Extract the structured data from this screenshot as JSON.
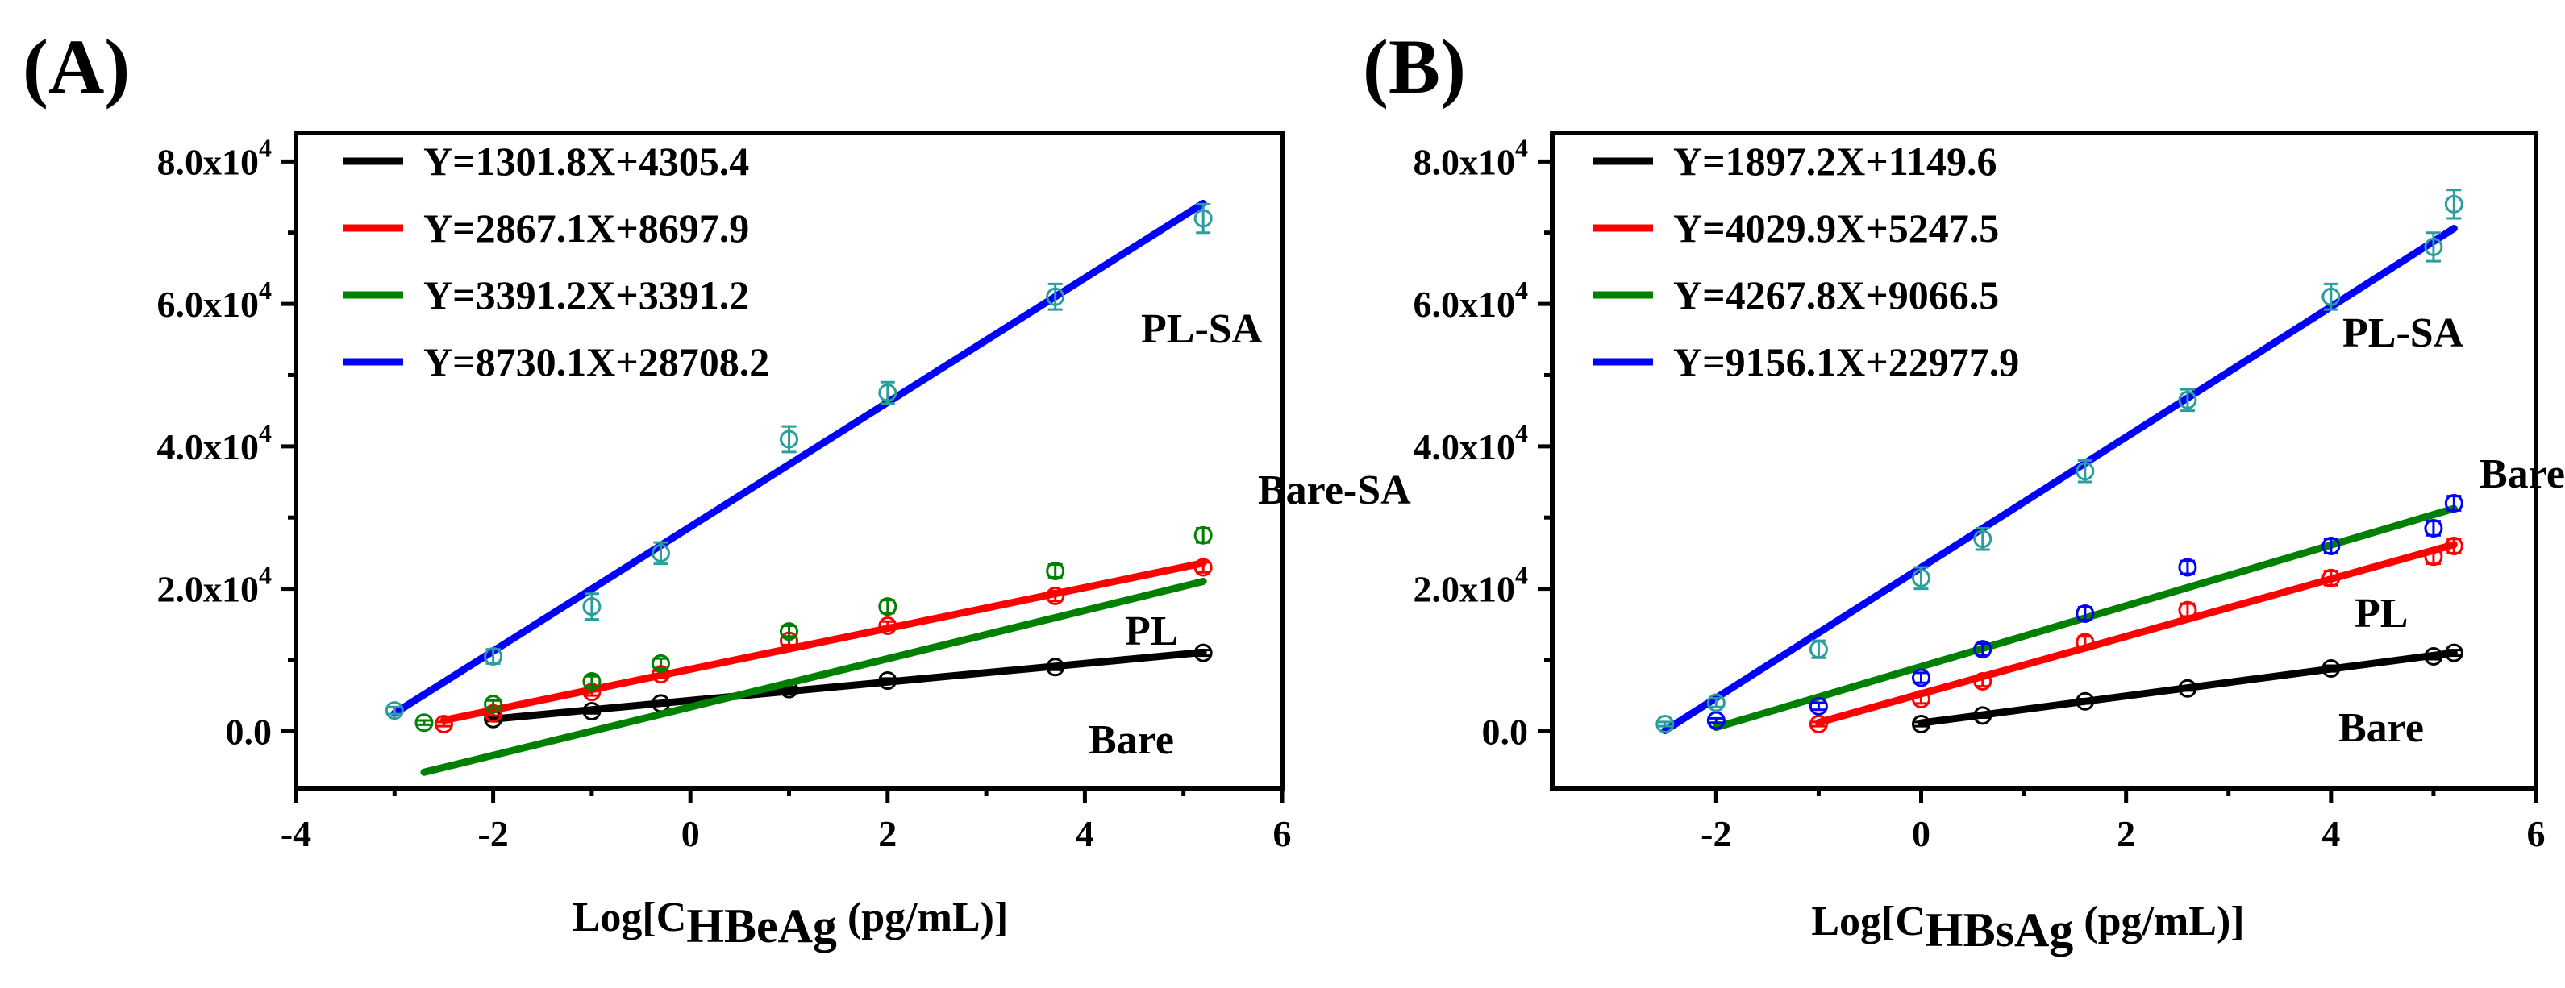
{
  "chart_data": [
    {
      "type": "scatter",
      "panel_label": "(A)",
      "xlabel": {
        "prefix": "Log[C",
        "subscript": "HBeAg",
        "suffix": " (pg/mL)]"
      },
      "ylabel": "",
      "xlim": [
        -4,
        6
      ],
      "ylim": [
        -8000,
        84000
      ],
      "xticks": [
        -4,
        -2,
        0,
        2,
        4,
        6
      ],
      "xtick_labels": [
        "-4",
        "-2",
        "0",
        "2",
        "4",
        "6"
      ],
      "yticks": [
        0,
        20000,
        40000,
        60000,
        80000
      ],
      "ytick_labels": [
        {
          "mantissa": "0.0",
          "exp": ""
        },
        {
          "mantissa": "2.0x10",
          "exp": "4"
        },
        {
          "mantissa": "4.0x10",
          "exp": "4"
        },
        {
          "mantissa": "6.0x10",
          "exp": "4"
        },
        {
          "mantissa": "8.0x10",
          "exp": "4"
        }
      ],
      "grid": false,
      "legend_position": "top-left",
      "series": [
        {
          "name": "Bare",
          "label": "Bare",
          "equation": "Y=1301.8X+4305.4",
          "line_color": "#000000",
          "marker_color": "#000000",
          "fit": {
            "slope": 1301.8,
            "intercept": 4305.4,
            "x_range": [
              -2,
              5.2
            ]
          },
          "points": [
            {
              "x": -2,
              "y": 1700,
              "err": 300
            },
            {
              "x": -1,
              "y": 2800,
              "err": 300
            },
            {
              "x": -0.3,
              "y": 3900,
              "err": 300
            },
            {
              "x": 1,
              "y": 5900,
              "err": 300
            },
            {
              "x": 2,
              "y": 7100,
              "err": 300
            },
            {
              "x": 3.7,
              "y": 9000,
              "err": 400
            },
            {
              "x": 5.2,
              "y": 11000,
              "err": 400
            }
          ]
        },
        {
          "name": "PL",
          "label": "PL",
          "equation": "Y=2867.1X+8697.9",
          "line_color": "#ff0000",
          "marker_color": "#ff0000",
          "fit": {
            "slope": 2867.1,
            "intercept": 8697.9,
            "x_range": [
              -2.5,
              5.2
            ]
          },
          "points": [
            {
              "x": -2.5,
              "y": 1000,
              "err": 300
            },
            {
              "x": -2,
              "y": 2500,
              "err": 300
            },
            {
              "x": -1,
              "y": 5500,
              "err": 500
            },
            {
              "x": -0.3,
              "y": 8000,
              "err": 500
            },
            {
              "x": 1,
              "y": 12700,
              "err": 600
            },
            {
              "x": 2,
              "y": 14800,
              "err": 600
            },
            {
              "x": 3.7,
              "y": 19000,
              "err": 700
            },
            {
              "x": 5.2,
              "y": 23000,
              "err": 700
            }
          ]
        },
        {
          "name": "Bare-SA",
          "label": "Bare-SA",
          "equation": "Y=3391.2X+3391.2",
          "line_color": "#008000",
          "marker_color": "#008000",
          "fit": {
            "slope": 3391.2,
            "intercept": 3391.2,
            "x_range": [
              -2.7,
              5.2
            ]
          },
          "points": [
            {
              "x": -2.7,
              "y": 1200,
              "err": 300
            },
            {
              "x": -2,
              "y": 3800,
              "err": 500
            },
            {
              "x": -1,
              "y": 7000,
              "err": 700
            },
            {
              "x": -0.3,
              "y": 9500,
              "err": 700
            },
            {
              "x": 1,
              "y": 14000,
              "err": 800
            },
            {
              "x": 2,
              "y": 17500,
              "err": 900
            },
            {
              "x": 3.7,
              "y": 22500,
              "err": 900
            },
            {
              "x": 5.2,
              "y": 27500,
              "err": 1000
            }
          ]
        },
        {
          "name": "PL-SA",
          "label": "PL-SA",
          "equation": "Y=8730.1X+28708.2",
          "line_color": "#0000ff",
          "marker_color": "#2a9d9d",
          "fit": {
            "slope": 8730.1,
            "intercept": 28708.2,
            "x_range": [
              -3,
              5.2
            ]
          },
          "points": [
            {
              "x": -3,
              "y": 2900,
              "err": 500
            },
            {
              "x": -2,
              "y": 10500,
              "err": 1000
            },
            {
              "x": -1,
              "y": 17500,
              "err": 1800
            },
            {
              "x": -0.3,
              "y": 25000,
              "err": 1500
            },
            {
              "x": 1,
              "y": 41000,
              "err": 1800
            },
            {
              "x": 2,
              "y": 47500,
              "err": 1500
            },
            {
              "x": 3.7,
              "y": 61000,
              "err": 1800
            },
            {
              "x": 5.2,
              "y": 72000,
              "err": 2000
            }
          ]
        }
      ]
    },
    {
      "type": "scatter",
      "panel_label": "(B)",
      "xlabel": {
        "prefix": "Log[C",
        "subscript": "HBsAg",
        "suffix": " (pg/mL)]"
      },
      "ylabel": "",
      "xlim": [
        -3.6,
        6
      ],
      "ylim": [
        -8000,
        84000
      ],
      "xticks": [
        -2,
        0,
        2,
        4,
        6
      ],
      "xtick_labels": [
        "-2",
        "0",
        "2",
        "4",
        "6"
      ],
      "yticks": [
        0,
        20000,
        40000,
        60000,
        80000
      ],
      "ytick_labels": [
        {
          "mantissa": "0.0",
          "exp": ""
        },
        {
          "mantissa": "2.0x10",
          "exp": "4"
        },
        {
          "mantissa": "4.0x10",
          "exp": "4"
        },
        {
          "mantissa": "6.0x10",
          "exp": "4"
        },
        {
          "mantissa": "8.0x10",
          "exp": "4"
        }
      ],
      "grid": false,
      "legend_position": "top-left",
      "series": [
        {
          "name": "Bare",
          "label": "Bare",
          "equation": "Y=1897.2X+1149.6",
          "line_color": "#000000",
          "marker_color": "#000000",
          "fit": {
            "slope": 1897.2,
            "intercept": 1149.6,
            "x_range": [
              0,
              5.2
            ]
          },
          "points": [
            {
              "x": 0,
              "y": 1000,
              "err": 300
            },
            {
              "x": 0.6,
              "y": 2200,
              "err": 300
            },
            {
              "x": 1.6,
              "y": 4200,
              "err": 300
            },
            {
              "x": 2.6,
              "y": 6000,
              "err": 300
            },
            {
              "x": 4,
              "y": 8800,
              "err": 400
            },
            {
              "x": 5,
              "y": 10500,
              "err": 400
            },
            {
              "x": 5.2,
              "y": 11000,
              "err": 400
            }
          ]
        },
        {
          "name": "PL",
          "label": "PL",
          "equation": "Y=4029.9X+5247.5",
          "line_color": "#ff0000",
          "marker_color": "#ff0000",
          "fit": {
            "slope": 4029.9,
            "intercept": 5247.5,
            "x_range": [
              -1,
              5.2
            ]
          },
          "points": [
            {
              "x": -1,
              "y": 1000,
              "err": 300
            },
            {
              "x": 0,
              "y": 4500,
              "err": 600
            },
            {
              "x": 0.6,
              "y": 7000,
              "err": 700
            },
            {
              "x": 1.6,
              "y": 12500,
              "err": 800
            },
            {
              "x": 2.6,
              "y": 17000,
              "err": 900
            },
            {
              "x": 4,
              "y": 21500,
              "err": 1000
            },
            {
              "x": 5,
              "y": 24500,
              "err": 1000
            },
            {
              "x": 5.2,
              "y": 26000,
              "err": 1000
            }
          ]
        },
        {
          "name": "Bare-SA",
          "label": "Bare-SA",
          "equation": "Y=4267.8X+9066.5",
          "line_color": "#008000",
          "marker_color": "#0000ff",
          "fit": {
            "slope": 4267.8,
            "intercept": 9066.5,
            "x_range": [
              -2,
              5.2
            ]
          },
          "points": [
            {
              "x": -2,
              "y": 1500,
              "err": 300
            },
            {
              "x": -1,
              "y": 3500,
              "err": 500
            },
            {
              "x": 0,
              "y": 7500,
              "err": 700
            },
            {
              "x": 0.6,
              "y": 11500,
              "err": 800
            },
            {
              "x": 1.6,
              "y": 16500,
              "err": 900
            },
            {
              "x": 2.6,
              "y": 23000,
              "err": 900
            },
            {
              "x": 4,
              "y": 26000,
              "err": 1000
            },
            {
              "x": 5,
              "y": 28500,
              "err": 1000
            },
            {
              "x": 5.2,
              "y": 32000,
              "err": 1000
            }
          ]
        },
        {
          "name": "PL-SA",
          "label": "PL-SA",
          "equation": "Y=9156.1X+22977.9",
          "line_color": "#0000ff",
          "marker_color": "#2a9d9d",
          "fit": {
            "slope": 9156.1,
            "intercept": 22977.9,
            "x_range": [
              -2.5,
              5.2
            ]
          },
          "points": [
            {
              "x": -2.5,
              "y": 1000,
              "err": 300
            },
            {
              "x": -2,
              "y": 4000,
              "err": 600
            },
            {
              "x": -1,
              "y": 11500,
              "err": 1200
            },
            {
              "x": 0,
              "y": 21500,
              "err": 1500
            },
            {
              "x": 0.6,
              "y": 27000,
              "err": 1500
            },
            {
              "x": 1.6,
              "y": 36500,
              "err": 1500
            },
            {
              "x": 2.6,
              "y": 46500,
              "err": 1500
            },
            {
              "x": 4,
              "y": 61000,
              "err": 1800
            },
            {
              "x": 5,
              "y": 68000,
              "err": 2000
            },
            {
              "x": 5.2,
              "y": 74000,
              "err": 2000
            }
          ]
        }
      ]
    }
  ]
}
